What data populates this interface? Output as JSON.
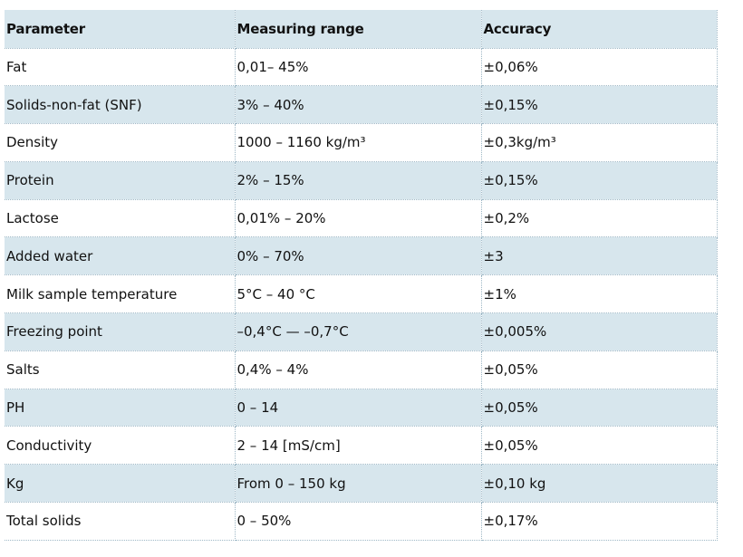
{
  "table": {
    "headers": [
      "Parameter",
      "Measuring range",
      "Accuracy"
    ],
    "rows": [
      [
        "Fat",
        "0,01– 45%",
        "±0,06%"
      ],
      [
        "Solids-non-fat (SNF)",
        "3% – 40%",
        "±0,15%"
      ],
      [
        "Density",
        "1000 – 1160 kg/m³",
        "±0,3kg/m³"
      ],
      [
        "Protein",
        "2% – 15%",
        "±0,15%"
      ],
      [
        "Lactose",
        "0,01% – 20%",
        "±0,2%"
      ],
      [
        "Added water",
        "0% – 70%",
        "±3"
      ],
      [
        "Milk sample temperature",
        "5°C – 40 °C",
        "±1%"
      ],
      [
        "Freezing point",
        "–0,4°C — –0,7°C",
        "±0,005%"
      ],
      [
        "Salts",
        "0,4% – 4%",
        "±0,05%"
      ],
      [
        "PH",
        "0 – 14",
        "±0,05%"
      ],
      [
        "Conductivity",
        "2 – 14 [mS/cm]",
        "±0,05%"
      ],
      [
        "Kg",
        "From 0 – 150 kg",
        "±0,10 kg"
      ],
      [
        "Total solids",
        "0 – 50%",
        "±0,17%"
      ]
    ]
  },
  "colors": {
    "row_shade": "#d7e6ed",
    "row_plain": "#ffffff",
    "border": "#9fb8c6"
  }
}
